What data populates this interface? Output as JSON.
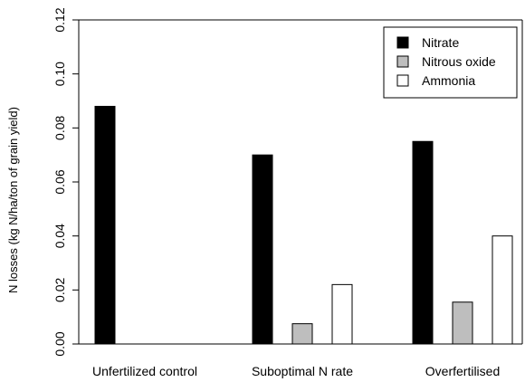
{
  "chart_data": {
    "type": "bar",
    "title": "",
    "xlabel": "",
    "ylabel": "N losses (kg N/ha/ton of grain yield)",
    "ylim": [
      0,
      0.12
    ],
    "yticks": [
      "0.00",
      "0.02",
      "0.04",
      "0.06",
      "0.08",
      "0.10",
      "0.12"
    ],
    "categories": [
      "Unfertilized control",
      "Suboptimal N rate",
      "Overfertilised"
    ],
    "series": [
      {
        "name": "Nitrate",
        "values": [
          0.088,
          0.07,
          0.075
        ],
        "color": "#000000"
      },
      {
        "name": "Nitrous oxide",
        "values": [
          0.0,
          0.0075,
          0.0155
        ],
        "color": "#bebebe"
      },
      {
        "name": "Ammonia",
        "values": [
          0.0,
          0.022,
          0.04
        ],
        "color": "#ffffff"
      }
    ],
    "legend_position": "top-right",
    "grid": false
  }
}
